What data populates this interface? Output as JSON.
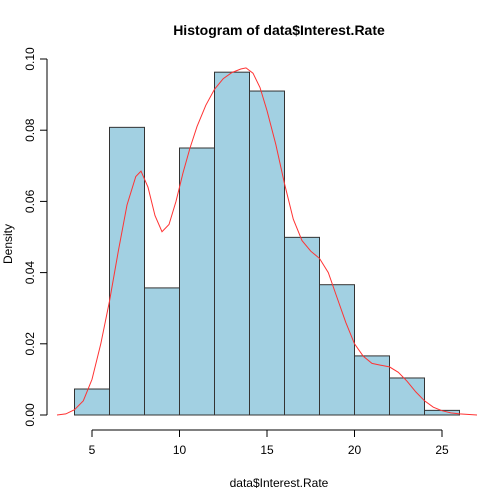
{
  "chart_data": {
    "type": "histogram",
    "title": "Histogram of data$Interest.Rate",
    "xlabel": "data$Interest.Rate",
    "ylabel": "Density",
    "xlim": [
      3,
      27
    ],
    "ylim": [
      0,
      0.1
    ],
    "x_ticks": [
      5,
      10,
      15,
      20,
      25
    ],
    "y_ticks": [
      0.0,
      0.02,
      0.04,
      0.06,
      0.08,
      0.1
    ],
    "y_tick_labels": [
      "0.00",
      "0.02",
      "0.04",
      "0.06",
      "0.08",
      "0.10"
    ],
    "x_tick_labels": [
      "5",
      "10",
      "15",
      "20",
      "25"
    ],
    "bar_color": "#a2d0e2",
    "bar_border_color": "#333333",
    "density_color": "#ff3333",
    "bins": [
      {
        "start": 4,
        "end": 6,
        "density": 0.0073
      },
      {
        "start": 6,
        "end": 8,
        "density": 0.0808
      },
      {
        "start": 8,
        "end": 10,
        "density": 0.0357
      },
      {
        "start": 10,
        "end": 12,
        "density": 0.075
      },
      {
        "start": 12,
        "end": 14,
        "density": 0.0963
      },
      {
        "start": 14,
        "end": 16,
        "density": 0.091
      },
      {
        "start": 16,
        "end": 18,
        "density": 0.0499
      },
      {
        "start": 18,
        "end": 20,
        "density": 0.0366
      },
      {
        "start": 20,
        "end": 22,
        "density": 0.0166
      },
      {
        "start": 22,
        "end": 24,
        "density": 0.0104
      },
      {
        "start": 24,
        "end": 26,
        "density": 0.0013
      }
    ],
    "density_curve": [
      [
        3.0,
        0.0
      ],
      [
        3.5,
        0.0003
      ],
      [
        4.0,
        0.0015
      ],
      [
        4.5,
        0.004
      ],
      [
        5.0,
        0.01
      ],
      [
        5.5,
        0.02
      ],
      [
        6.0,
        0.032
      ],
      [
        6.5,
        0.046
      ],
      [
        7.0,
        0.059
      ],
      [
        7.5,
        0.067
      ],
      [
        7.8,
        0.0685
      ],
      [
        8.2,
        0.064
      ],
      [
        8.6,
        0.056
      ],
      [
        9.0,
        0.0515
      ],
      [
        9.4,
        0.0535
      ],
      [
        9.8,
        0.06
      ],
      [
        10.2,
        0.068
      ],
      [
        10.6,
        0.075
      ],
      [
        11.0,
        0.081
      ],
      [
        11.5,
        0.087
      ],
      [
        12.0,
        0.0915
      ],
      [
        12.5,
        0.0945
      ],
      [
        13.0,
        0.0962
      ],
      [
        13.5,
        0.0972
      ],
      [
        13.8,
        0.0975
      ],
      [
        14.2,
        0.096
      ],
      [
        14.6,
        0.092
      ],
      [
        15.0,
        0.0855
      ],
      [
        15.5,
        0.076
      ],
      [
        16.0,
        0.065
      ],
      [
        16.5,
        0.055
      ],
      [
        17.0,
        0.049
      ],
      [
        17.5,
        0.046
      ],
      [
        18.0,
        0.044
      ],
      [
        18.5,
        0.04
      ],
      [
        19.0,
        0.033
      ],
      [
        19.5,
        0.026
      ],
      [
        20.0,
        0.02
      ],
      [
        20.5,
        0.0165
      ],
      [
        21.0,
        0.0145
      ],
      [
        21.5,
        0.014
      ],
      [
        22.0,
        0.0135
      ],
      [
        22.5,
        0.012
      ],
      [
        23.0,
        0.0095
      ],
      [
        23.5,
        0.0065
      ],
      [
        24.0,
        0.004
      ],
      [
        24.5,
        0.0022
      ],
      [
        25.0,
        0.0012
      ],
      [
        25.5,
        0.0006
      ],
      [
        26.0,
        0.0003
      ],
      [
        27.0,
        0.0
      ]
    ]
  }
}
